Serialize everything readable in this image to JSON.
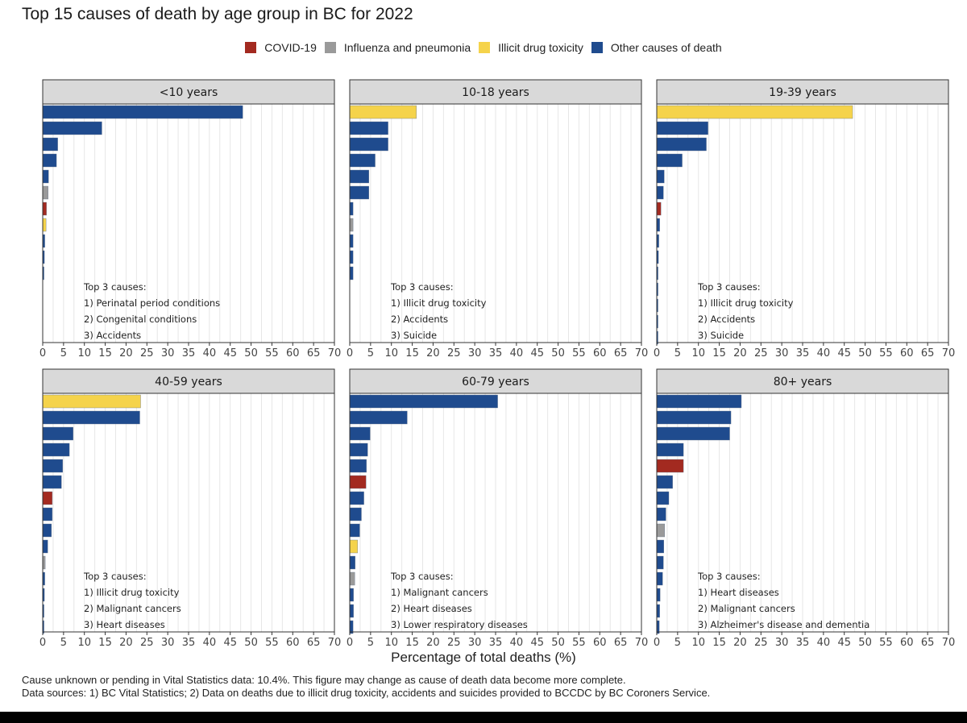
{
  "title": "Top 15 causes of death by age group in BC for 2022",
  "legend": [
    {
      "label": "COVID-19",
      "color": "#a32a20"
    },
    {
      "label": "Influenza and pneumonia",
      "color": "#9a9a9a"
    },
    {
      "label": "Illicit drug toxicity",
      "color": "#f5d34b"
    },
    {
      "label": "Other causes of death",
      "color": "#1f4b8e"
    }
  ],
  "xlabel": "Percentage of total deaths (%)",
  "footnote": {
    "line1": "Cause unknown or pending in Vital Statistics data: 10.4%. This figure may change as cause of death data become more complete.",
    "line2": "Data sources: 1) BC Vital Statistics; 2) Data on deaths due to illicit drug toxicity, accidents and suicides provided to BCCDC by BC Coroners Service."
  },
  "chart_data": {
    "type": "bar",
    "orientation": "horizontal",
    "xlim": [
      0,
      70
    ],
    "xticks": [
      0,
      5,
      10,
      15,
      20,
      25,
      30,
      35,
      40,
      45,
      50,
      55,
      60,
      65,
      70
    ],
    "grid": true,
    "legend_position": "top",
    "facets": [
      {
        "label": "<10 years",
        "annotation": [
          "Top 3 causes:",
          "1) Perinatal period conditions",
          "2) Congenital conditions",
          "3) Accidents"
        ],
        "bars": [
          {
            "value": 48,
            "cat": "other"
          },
          {
            "value": 14.2,
            "cat": "other"
          },
          {
            "value": 3.6,
            "cat": "other"
          },
          {
            "value": 3.3,
            "cat": "other"
          },
          {
            "value": 1.4,
            "cat": "other"
          },
          {
            "value": 1.3,
            "cat": "influenza"
          },
          {
            "value": 0.9,
            "cat": "covid"
          },
          {
            "value": 0.8,
            "cat": "drug"
          },
          {
            "value": 0.5,
            "cat": "other"
          },
          {
            "value": 0.4,
            "cat": "other"
          },
          {
            "value": 0.3,
            "cat": "other"
          }
        ]
      },
      {
        "label": "10-18 years",
        "annotation": [
          "Top 3 causes:",
          "1) Illicit drug toxicity",
          "2) Accidents",
          "3) Suicide"
        ],
        "bars": [
          {
            "value": 16,
            "cat": "drug"
          },
          {
            "value": 9.2,
            "cat": "other"
          },
          {
            "value": 9.2,
            "cat": "other"
          },
          {
            "value": 6.1,
            "cat": "other"
          },
          {
            "value": 4.6,
            "cat": "other"
          },
          {
            "value": 4.6,
            "cat": "other"
          },
          {
            "value": 0.8,
            "cat": "other"
          },
          {
            "value": 0.8,
            "cat": "influenza"
          },
          {
            "value": 0.8,
            "cat": "other"
          },
          {
            "value": 0.8,
            "cat": "other"
          },
          {
            "value": 0.8,
            "cat": "other"
          }
        ]
      },
      {
        "label": "19-39 years",
        "annotation": [
          "Top 3 causes:",
          "1) Illicit drug toxicity",
          "2) Accidents",
          "3) Suicide"
        ],
        "bars": [
          {
            "value": 47,
            "cat": "drug"
          },
          {
            "value": 12.3,
            "cat": "other"
          },
          {
            "value": 11.9,
            "cat": "other"
          },
          {
            "value": 6.1,
            "cat": "other"
          },
          {
            "value": 1.8,
            "cat": "other"
          },
          {
            "value": 1.6,
            "cat": "other"
          },
          {
            "value": 1.0,
            "cat": "covid"
          },
          {
            "value": 0.7,
            "cat": "other"
          },
          {
            "value": 0.5,
            "cat": "other"
          },
          {
            "value": 0.4,
            "cat": "other"
          },
          {
            "value": 0.3,
            "cat": "other"
          },
          {
            "value": 0.3,
            "cat": "other"
          },
          {
            "value": 0.2,
            "cat": "other"
          },
          {
            "value": 0.2,
            "cat": "other"
          },
          {
            "value": 0.2,
            "cat": "other"
          }
        ]
      },
      {
        "label": "40-59 years",
        "annotation": [
          "Top 3 causes:",
          "1) Illicit drug toxicity",
          "2) Malignant cancers",
          "3) Heart diseases"
        ],
        "bars": [
          {
            "value": 23.5,
            "cat": "drug"
          },
          {
            "value": 23.3,
            "cat": "other"
          },
          {
            "value": 7.3,
            "cat": "other"
          },
          {
            "value": 6.4,
            "cat": "other"
          },
          {
            "value": 4.8,
            "cat": "other"
          },
          {
            "value": 4.5,
            "cat": "other"
          },
          {
            "value": 2.3,
            "cat": "covid"
          },
          {
            "value": 2.3,
            "cat": "other"
          },
          {
            "value": 2.1,
            "cat": "other"
          },
          {
            "value": 1.2,
            "cat": "other"
          },
          {
            "value": 0.6,
            "cat": "influenza"
          },
          {
            "value": 0.5,
            "cat": "other"
          },
          {
            "value": 0.4,
            "cat": "other"
          },
          {
            "value": 0.3,
            "cat": "other"
          },
          {
            "value": 0.3,
            "cat": "other"
          }
        ]
      },
      {
        "label": "60-79 years",
        "annotation": [
          "Top 3 causes:",
          "1) Malignant cancers",
          "2) Heart diseases",
          "3) Lower respiratory diseases"
        ],
        "bars": [
          {
            "value": 35.5,
            "cat": "other"
          },
          {
            "value": 13.8,
            "cat": "other"
          },
          {
            "value": 4.9,
            "cat": "other"
          },
          {
            "value": 4.3,
            "cat": "other"
          },
          {
            "value": 4.0,
            "cat": "other"
          },
          {
            "value": 3.9,
            "cat": "covid"
          },
          {
            "value": 3.4,
            "cat": "other"
          },
          {
            "value": 2.8,
            "cat": "other"
          },
          {
            "value": 2.4,
            "cat": "other"
          },
          {
            "value": 1.9,
            "cat": "drug"
          },
          {
            "value": 1.3,
            "cat": "other"
          },
          {
            "value": 1.2,
            "cat": "influenza"
          },
          {
            "value": 0.9,
            "cat": "other"
          },
          {
            "value": 0.9,
            "cat": "other"
          },
          {
            "value": 0.8,
            "cat": "other"
          }
        ]
      },
      {
        "label": "80+ years",
        "annotation": [
          "Top 3 causes:",
          "1) Heart diseases",
          "2) Malignant cancers",
          "3) Alzheimer's disease and dementia"
        ],
        "bars": [
          {
            "value": 20.3,
            "cat": "other"
          },
          {
            "value": 17.8,
            "cat": "other"
          },
          {
            "value": 17.5,
            "cat": "other"
          },
          {
            "value": 6.4,
            "cat": "other"
          },
          {
            "value": 6.4,
            "cat": "covid"
          },
          {
            "value": 3.8,
            "cat": "other"
          },
          {
            "value": 2.9,
            "cat": "other"
          },
          {
            "value": 2.2,
            "cat": "other"
          },
          {
            "value": 1.9,
            "cat": "influenza"
          },
          {
            "value": 1.7,
            "cat": "other"
          },
          {
            "value": 1.6,
            "cat": "other"
          },
          {
            "value": 1.4,
            "cat": "other"
          },
          {
            "value": 0.8,
            "cat": "other"
          },
          {
            "value": 0.7,
            "cat": "other"
          },
          {
            "value": 0.6,
            "cat": "other"
          }
        ]
      }
    ]
  }
}
